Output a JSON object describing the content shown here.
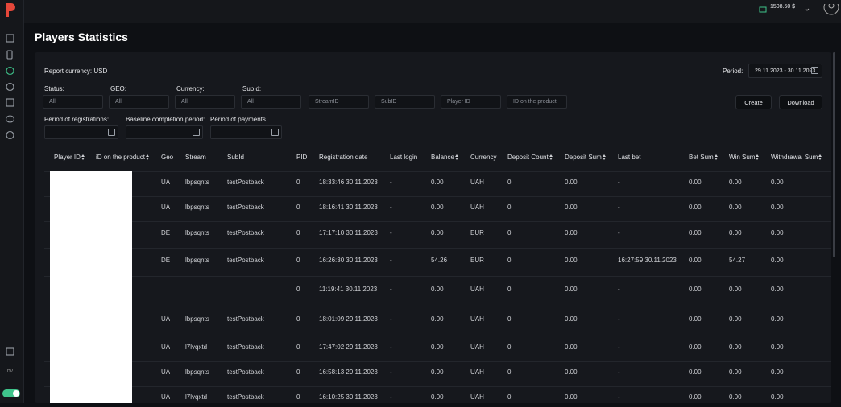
{
  "header": {
    "balance": "1508.50 $",
    "user_initials": "DV"
  },
  "title": "Players Statistics",
  "report": {
    "currency_label": "Report currency: USD",
    "period_label": "Period:",
    "period_value": "29.11.2023 - 30.11.2023"
  },
  "filters": {
    "selects": [
      {
        "label": "Status:",
        "value": "All"
      },
      {
        "label": "GEO:",
        "value": "All"
      },
      {
        "label": "Currency:",
        "value": "All"
      },
      {
        "label": "SubId:",
        "value": "All"
      }
    ],
    "inputs": [
      "StreamID",
      "SubID",
      "Player ID",
      "ID on the product"
    ],
    "buttons": [
      "Create",
      "Download"
    ],
    "dates": [
      "Period of registrations:",
      "Baseline completion period:",
      "Period of payments"
    ]
  },
  "table": {
    "columns": [
      "Player ID",
      "iD on the product",
      "Geo",
      "Stream",
      "SubId",
      "PID",
      "Registration date",
      "Last login",
      "Balance",
      "Currency",
      "Deposit Count",
      "Deposit Sum",
      "Last bet",
      "Bet Sum",
      "Win Sum",
      "Withdrawal Sum"
    ],
    "sortable": [
      true,
      true,
      false,
      false,
      false,
      false,
      false,
      false,
      true,
      false,
      true,
      true,
      false,
      true,
      true,
      true
    ],
    "rows": [
      [
        "UA",
        "lbpsqnts",
        "testPostback",
        "0",
        "18:33:46 30.11.2023",
        "-",
        "0.00",
        "UAH",
        "0",
        "0.00",
        "-",
        "0.00",
        "0.00",
        "0.00"
      ],
      [
        "UA",
        "lbpsqnts",
        "testPostback",
        "0",
        "18:16:41 30.11.2023",
        "-",
        "0.00",
        "UAH",
        "0",
        "0.00",
        "-",
        "0.00",
        "0.00",
        "0.00"
      ],
      [
        "DE",
        "lbpsqnts",
        "testPostback",
        "0",
        "17:17:10 30.11.2023",
        "-",
        "0.00",
        "EUR",
        "0",
        "0.00",
        "-",
        "0.00",
        "0.00",
        "0.00"
      ],
      [
        "DE",
        "lbpsqnts",
        "testPostback",
        "0",
        "16:26:30 30.11.2023",
        "-",
        "54.26",
        "EUR",
        "0",
        "0.00",
        "16:27:59 30.11.2023",
        "0.00",
        "54.27",
        "0.00"
      ],
      [
        null,
        null,
        null,
        "0",
        "11:19:41 30.11.2023",
        "-",
        "0.00",
        "UAH",
        "0",
        "0.00",
        "-",
        "0.00",
        "0.00",
        "0.00"
      ],
      [
        "UA",
        "lbpsqnts",
        "testPostback",
        "0",
        "18:01:09 29.11.2023",
        "-",
        "0.00",
        "UAH",
        "0",
        "0.00",
        "-",
        "0.00",
        "0.00",
        "0.00"
      ],
      [
        "UA",
        "l7lvqxtd",
        "testPostback",
        "0",
        "17:47:02 29.11.2023",
        "-",
        "0.00",
        "UAH",
        "0",
        "0.00",
        "-",
        "0.00",
        "0.00",
        "0.00"
      ],
      [
        "UA",
        "lbpsqnts",
        "testPostback",
        "0",
        "16:58:13 29.11.2023",
        "-",
        "0.00",
        "UAH",
        "0",
        "0.00",
        "-",
        "0.00",
        "0.00",
        "0.00"
      ],
      [
        "UA",
        "l7lvqxtd",
        "testPostback",
        "0",
        "16:10:25 30.11.2023",
        "-",
        "0.00",
        "UAH",
        "0",
        "0.00",
        "-",
        "0.00",
        "0.00",
        "0.00"
      ]
    ]
  }
}
